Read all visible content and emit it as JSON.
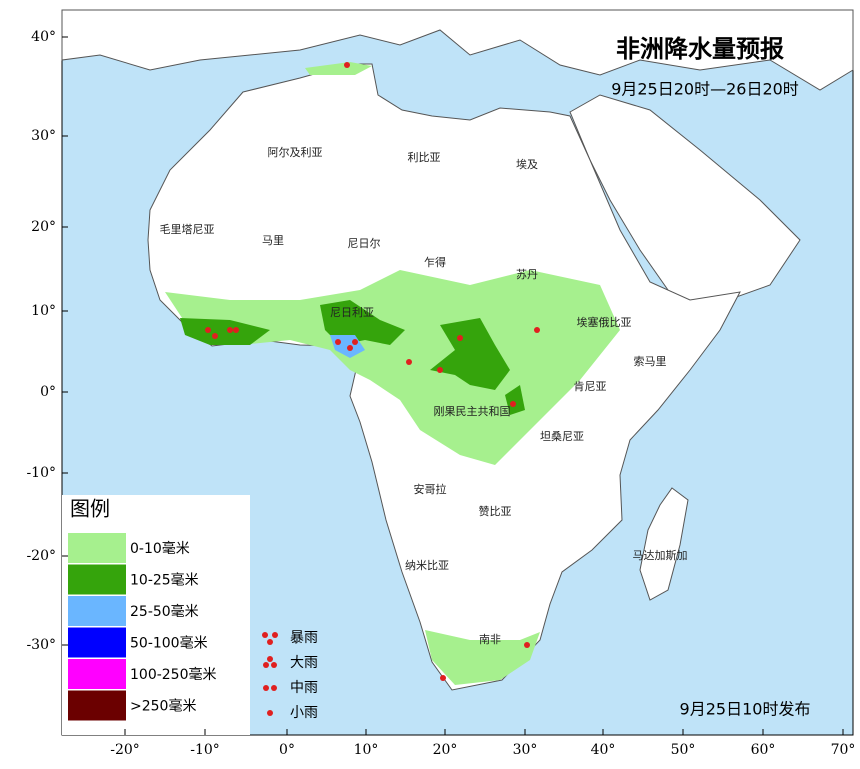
{
  "title": "非洲降水量预报",
  "subtitle": "9月25日20时—26日20时",
  "lat_labels": [
    "40°",
    "30°",
    "20°",
    "10°",
    "0°",
    "-10°",
    "-20°",
    "-30°"
  ],
  "lon_labels": [
    "-20°",
    "-10°",
    "0°",
    "10°",
    "20°",
    "30°",
    "40°",
    "50°",
    "60°",
    "70°"
  ],
  "countries": [
    "阿尔及利亚",
    "利比亚",
    "埃及",
    "毛里塔尼亚",
    "马里",
    "尼日尔",
    "乍得",
    "苏丹",
    "尼日利亚",
    "埃塞俄比亚",
    "索马里",
    "肯尼亚",
    "刚果民主共和国",
    "坦桑尼亚",
    "安哥拉",
    "赞比亚",
    "马达加斯加",
    "纳米比亚",
    "南非"
  ],
  "legend": {
    "title": "图例",
    "items": [
      {
        "label": "0-10毫米",
        "color": "#a6f08e"
      },
      {
        "label": "10-25毫米",
        "color": "#35a40c"
      },
      {
        "label": "25-50毫米",
        "color": "#6ab6ff"
      },
      {
        "label": "50-100毫米",
        "color": "#0000ff"
      },
      {
        "label": "100-250毫米",
        "color": "#ff00ff"
      },
      {
        "label": ">250毫米",
        "color": "#6b0000"
      }
    ],
    "symbols": [
      "暴雨",
      "大雨",
      "中雨",
      "小雨"
    ]
  },
  "release": "9月25日10时发布"
}
